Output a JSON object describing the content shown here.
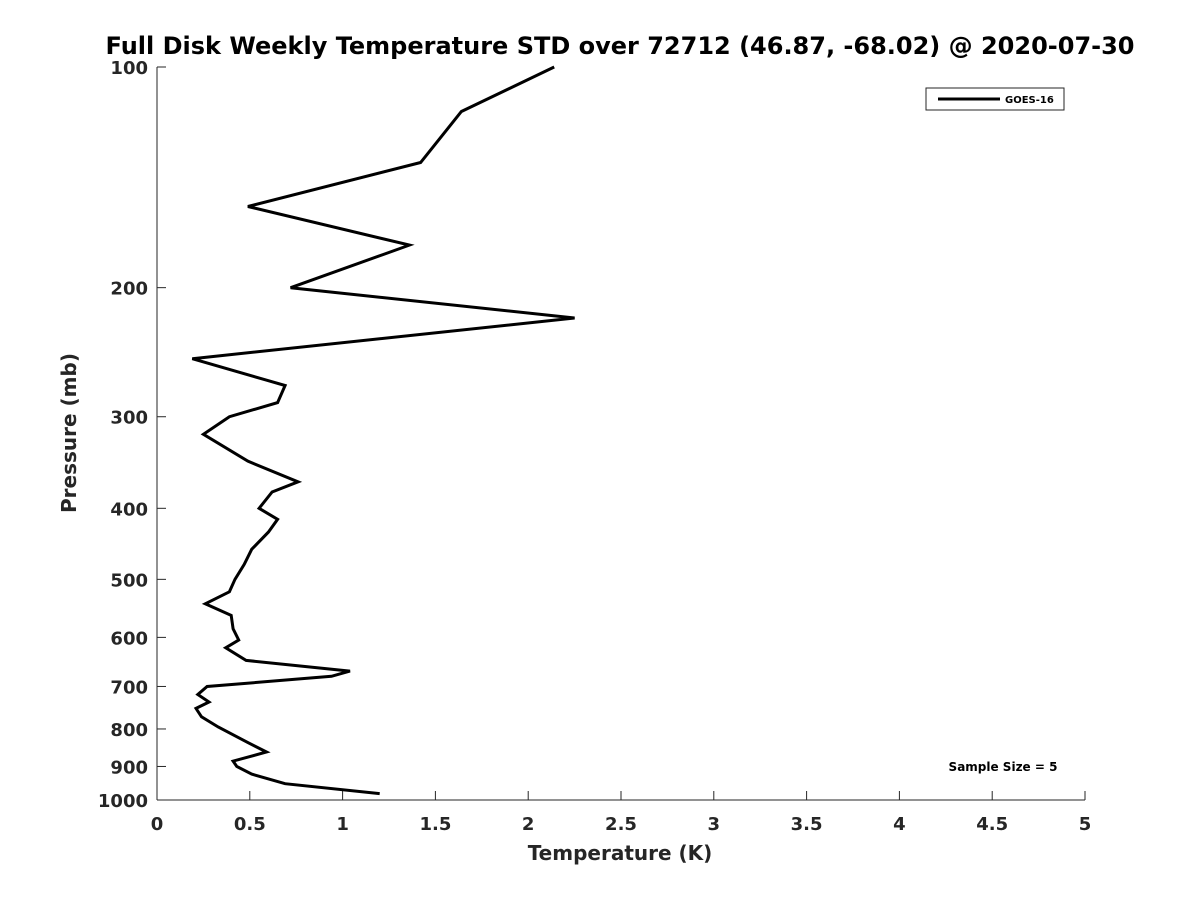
{
  "chart_data": {
    "type": "line",
    "title": "Full Disk Weekly Temperature STD over 72712 (46.87, -68.02) @ 2020-07-30",
    "xlabel": "Temperature (K)",
    "ylabel": "Pressure (mb)",
    "xlim": [
      0,
      5
    ],
    "ylim": [
      100,
      1000
    ],
    "y_scale": "log",
    "y_reversed": true,
    "x_ticks": [
      "0",
      "0.5",
      "1",
      "1.5",
      "2",
      "2.5",
      "3",
      "3.5",
      "4",
      "4.5",
      "5"
    ],
    "y_ticks": [
      "100",
      "200",
      "300",
      "400",
      "500",
      "600",
      "700",
      "800",
      "900",
      "1000"
    ],
    "grid": false,
    "legend_position": "top-right",
    "annotation": "Sample Size = 5",
    "series": [
      {
        "name": "GOES-16",
        "color": "#000000",
        "x": [
          2.14,
          1.64,
          1.42,
          0.49,
          1.36,
          0.72,
          2.25,
          0.19,
          0.69,
          0.65,
          0.39,
          0.25,
          0.49,
          0.76,
          0.62,
          0.55,
          0.65,
          0.6,
          0.51,
          0.47,
          0.42,
          0.39,
          0.26,
          0.4,
          0.41,
          0.44,
          0.37,
          0.48,
          1.04,
          0.94,
          0.27,
          0.22,
          0.28,
          0.21,
          0.24,
          0.33,
          0.49,
          0.59,
          0.41,
          0.43,
          0.51,
          0.69,
          1.2
        ],
        "y": [
          100,
          115,
          135,
          155,
          175,
          200,
          220,
          250,
          272,
          287,
          300,
          317,
          345,
          368,
          380,
          400,
          414,
          431,
          455,
          477,
          500,
          520,
          540,
          560,
          584,
          605,
          620,
          645,
          667,
          678,
          700,
          718,
          735,
          750,
          770,
          795,
          835,
          860,
          885,
          900,
          922,
          950,
          980
        ]
      }
    ]
  }
}
